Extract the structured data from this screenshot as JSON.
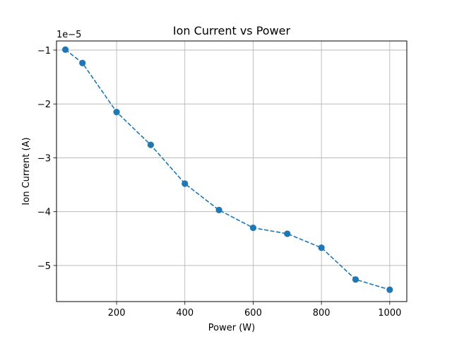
{
  "chart_data": {
    "type": "line",
    "title": "Ion Current vs Power",
    "xlabel": "Power (W)",
    "ylabel": "Ion Current (A)",
    "offset_label": "1e−5",
    "xlim": [
      24,
      1050
    ],
    "ylim": [
      -5.67,
      -0.83
    ],
    "x_ticks": [
      200,
      400,
      600,
      800,
      1000
    ],
    "x_tick_labels": [
      "200",
      "400",
      "600",
      "800",
      "1000"
    ],
    "y_ticks": [
      -1,
      -2,
      -3,
      -4,
      -5
    ],
    "y_tick_labels": [
      "−1",
      "−2",
      "−3",
      "−4",
      "−5"
    ],
    "grid": true,
    "series": [
      {
        "x": [
          50,
          100,
          200,
          300,
          400,
          500,
          600,
          700,
          800,
          900,
          1000
        ],
        "y": [
          -0.99,
          -1.24,
          -2.15,
          -2.76,
          -3.48,
          -3.97,
          -4.3,
          -4.41,
          -4.67,
          -5.26,
          -5.45
        ],
        "color": "#1f77b4",
        "linestyle": "dashed",
        "marker": "circle"
      }
    ]
  }
}
